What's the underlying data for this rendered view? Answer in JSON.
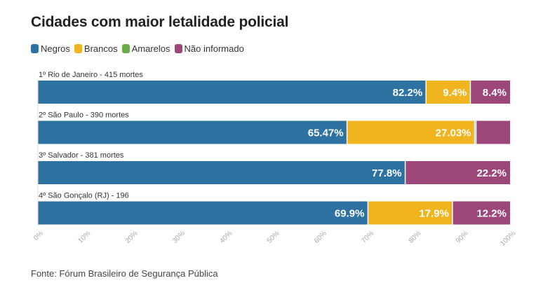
{
  "chart_data": {
    "type": "bar",
    "orientation": "horizontal",
    "stacked": true,
    "title": "Cidades com maior letalidade policial",
    "source": "Fonte: Fórum Brasileiro de Segurança Pública",
    "categories": [
      "1º Rio de Janeiro - 415 mortes",
      "2º São Paulo - 390 mortes",
      "3º Salvador - 381 mortes",
      "4º São Gonçalo (RJ) - 196"
    ],
    "series": [
      {
        "name": "Negros",
        "color": "#2e72a1",
        "values": [
          82.2,
          65.47,
          77.8,
          69.9
        ],
        "labels": [
          "82.2%",
          "65.47%",
          "77.8%",
          "69.9%"
        ]
      },
      {
        "name": "Brancos",
        "color": "#f0b41e",
        "values": [
          9.4,
          27.03,
          0,
          17.9
        ],
        "labels": [
          "9.4%",
          "27.03%",
          "",
          "17.9%"
        ]
      },
      {
        "name": "Amarelos",
        "color": "#6aab4c",
        "values": [
          0,
          0.3,
          0,
          0
        ],
        "labels": [
          "",
          "",
          "",
          ""
        ]
      },
      {
        "name": "Não informado",
        "color": "#9c4679",
        "values": [
          8.4,
          7.2,
          22.2,
          12.2
        ],
        "labels": [
          "8.4%",
          "",
          "22.2%",
          "12.2%"
        ]
      }
    ],
    "xlim": [
      0,
      100
    ],
    "x_ticks": [
      "0%",
      "10%",
      "20%",
      "30%",
      "40%",
      "50%",
      "60%",
      "70%",
      "80%",
      "90%",
      "100%"
    ],
    "grid": false,
    "legend_position": "top-left"
  }
}
